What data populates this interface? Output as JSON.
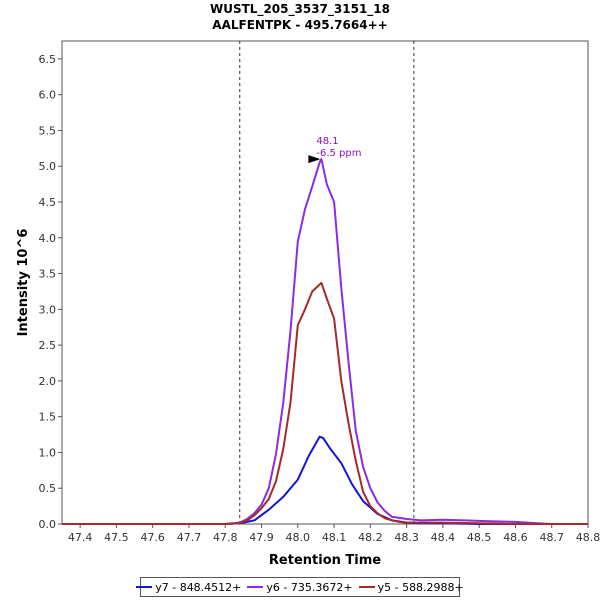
{
  "colors": {
    "y7": "#1515d6",
    "y6": "#8b2be2",
    "y5": "#a52a2a",
    "annotation": "#8b10c8",
    "grid": "#555555"
  },
  "chart_data": {
    "type": "line",
    "title": "WUSTL_205_3537_3151_18",
    "subtitle": "AALFENTPK - 495.7664++",
    "xlabel": "Retention Time",
    "ylabel": "Intensity 10^6",
    "xlim": [
      47.35,
      48.8
    ],
    "ylim": [
      0.0,
      6.75
    ],
    "xticks": [
      "47.4",
      "47.5",
      "47.6",
      "47.7",
      "47.8",
      "47.9",
      "48.0",
      "48.1",
      "48.2",
      "48.3",
      "48.4",
      "48.5",
      "48.6",
      "48.7",
      "48.8"
    ],
    "yticks": [
      "0.0",
      "0.5",
      "1.0",
      "1.5",
      "2.0",
      "2.5",
      "3.0",
      "3.5",
      "4.0",
      "4.5",
      "5.0",
      "5.5",
      "6.0",
      "6.5"
    ],
    "boundaries": [
      47.84,
      48.32
    ],
    "peak_annotation": {
      "x": 48.065,
      "y": 5.1,
      "line1": "48.1",
      "line2": "-6.5 ppm"
    },
    "series": [
      {
        "name": "y7 - 848.4512+",
        "key": "y7",
        "x": [
          47.35,
          47.8,
          47.84,
          47.88,
          47.92,
          47.96,
          48.0,
          48.03,
          48.06,
          48.07,
          48.09,
          48.12,
          48.15,
          48.18,
          48.22,
          48.26,
          48.3,
          48.34,
          48.4,
          48.5,
          48.6,
          48.7,
          48.8
        ],
        "values": [
          0.0,
          0.0,
          0.01,
          0.05,
          0.2,
          0.38,
          0.62,
          0.95,
          1.22,
          1.2,
          1.05,
          0.85,
          0.55,
          0.32,
          0.14,
          0.05,
          0.02,
          0.01,
          0.01,
          0.0,
          0.0,
          0.0,
          0.0
        ]
      },
      {
        "name": "y6 - 735.3672+",
        "key": "y6",
        "x": [
          47.35,
          47.8,
          47.84,
          47.86,
          47.88,
          47.9,
          47.92,
          47.94,
          47.96,
          47.98,
          48.0,
          48.02,
          48.04,
          48.06,
          48.065,
          48.08,
          48.1,
          48.12,
          48.14,
          48.16,
          48.18,
          48.2,
          48.22,
          48.24,
          48.26,
          48.3,
          48.34,
          48.4,
          48.46,
          48.52,
          48.6,
          48.66,
          48.7,
          48.8
        ],
        "values": [
          0.0,
          0.0,
          0.02,
          0.07,
          0.15,
          0.27,
          0.5,
          0.98,
          1.7,
          2.7,
          3.95,
          4.4,
          4.72,
          5.05,
          5.1,
          4.75,
          4.5,
          3.3,
          2.25,
          1.3,
          0.8,
          0.5,
          0.3,
          0.18,
          0.1,
          0.07,
          0.05,
          0.06,
          0.05,
          0.04,
          0.03,
          0.01,
          0.0,
          0.0
        ]
      },
      {
        "name": "y5 - 588.2988+",
        "key": "y5",
        "x": [
          47.35,
          47.8,
          47.84,
          47.86,
          47.88,
          47.9,
          47.92,
          47.94,
          47.96,
          47.98,
          48.0,
          48.02,
          48.04,
          48.065,
          48.08,
          48.1,
          48.12,
          48.14,
          48.16,
          48.18,
          48.2,
          48.22,
          48.24,
          48.26,
          48.28,
          48.3,
          48.34,
          48.4,
          48.5,
          48.6,
          48.7,
          48.8
        ],
        "values": [
          0.0,
          0.0,
          0.01,
          0.05,
          0.12,
          0.22,
          0.35,
          0.6,
          1.05,
          1.7,
          2.78,
          3.0,
          3.25,
          3.37,
          3.15,
          2.87,
          2.0,
          1.4,
          0.88,
          0.45,
          0.25,
          0.15,
          0.08,
          0.05,
          0.03,
          0.02,
          0.02,
          0.02,
          0.01,
          0.0,
          0.0,
          0.0
        ]
      }
    ]
  }
}
